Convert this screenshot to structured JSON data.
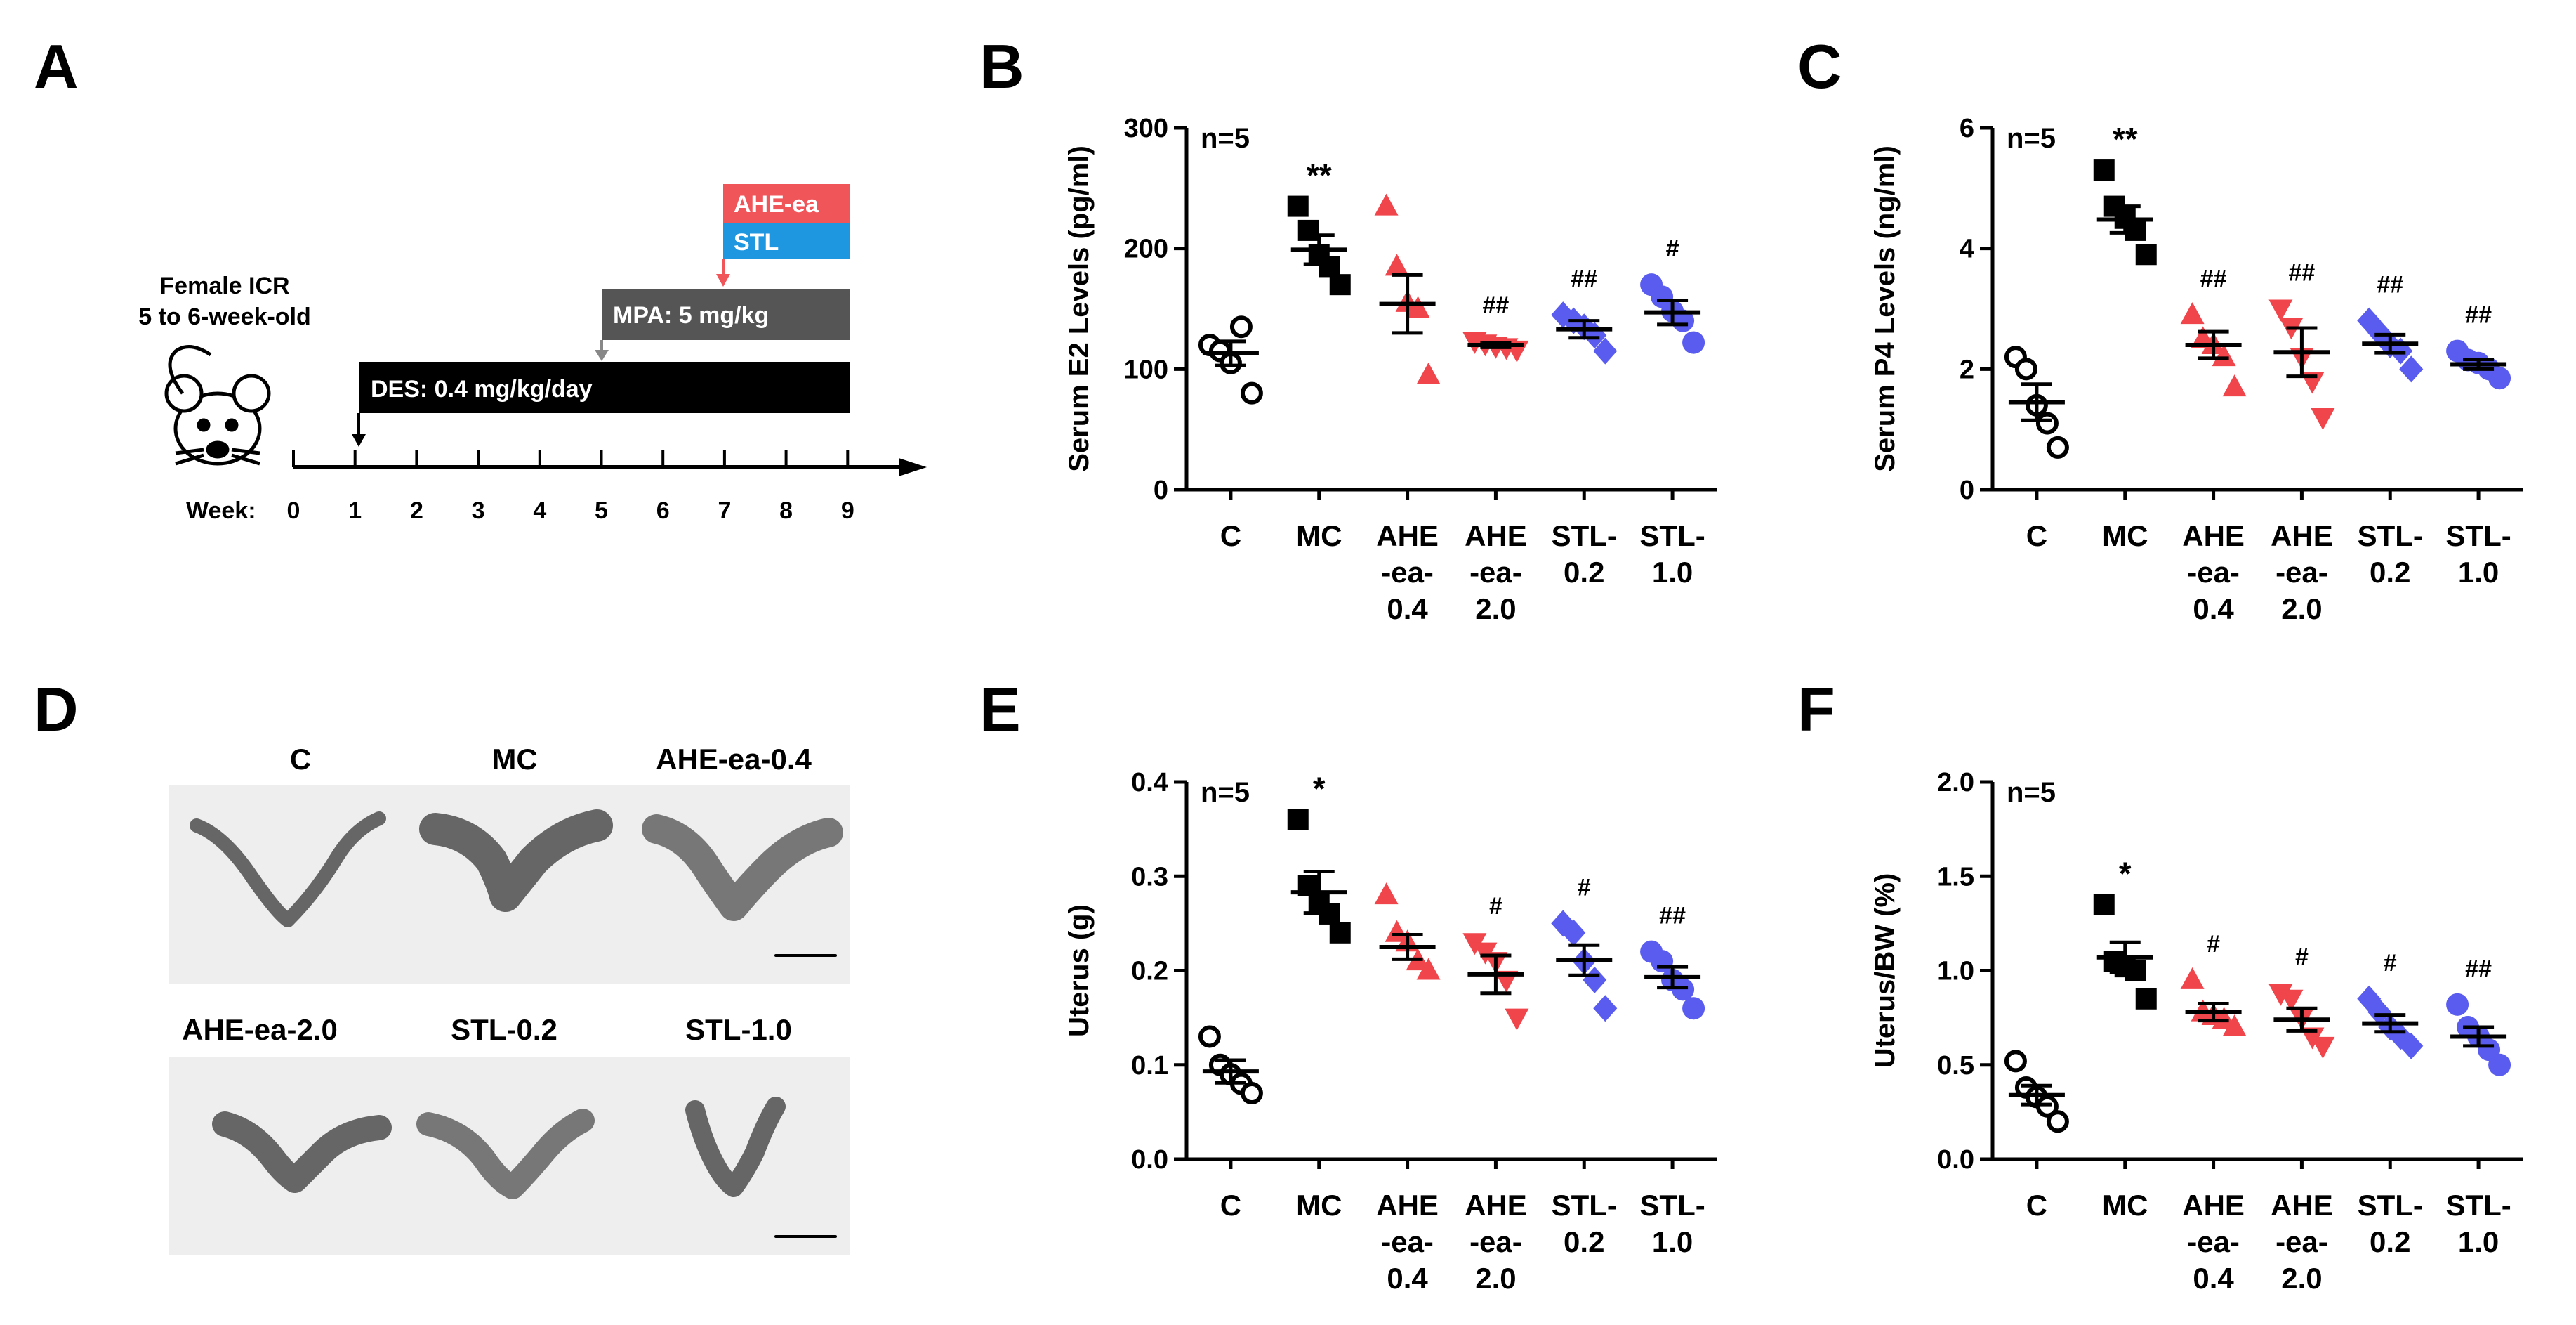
{
  "panel_letters": {
    "A": "A",
    "B": "B",
    "C": "C",
    "D": "D",
    "E": "E",
    "F": "F"
  },
  "colors": {
    "black": "#000000",
    "red": "#f0454b",
    "blue": "#5a5cf0",
    "dark_bar": "#555555",
    "ahe_box": "#f0555a",
    "stl_box": "#1f97e0",
    "photo_bg": "#eeeeee",
    "tissue": "#666666"
  },
  "timeline": {
    "animal_line1": "Female ICR",
    "animal_line2": "5 to 6-week-old",
    "week_label": "Week:",
    "weeks": [
      "0",
      "1",
      "2",
      "3",
      "4",
      "5",
      "6",
      "7",
      "8",
      "9"
    ],
    "des_label": "DES: 0.4 mg/kg/day",
    "mpa_label": "MPA: 5 mg/kg",
    "ahe_label": "AHE-ea",
    "stl_label": "STL",
    "mouse_icon": "mouse-icon"
  },
  "photos": {
    "row1_labels": [
      "C",
      "MC",
      "AHE-ea-0.4"
    ],
    "row2_labels": [
      "AHE-ea-2.0",
      "STL-0.2",
      "STL-1.0"
    ]
  },
  "chart_data": [
    {
      "id": "B",
      "type": "scatter",
      "ylabel": "Serum E2 Levels (pg/ml)",
      "ylim": [
        0,
        300
      ],
      "yticks": [
        "0",
        "100",
        "200",
        "300"
      ],
      "ytick_values": [
        0,
        100,
        200,
        300
      ],
      "n_label": "n=5",
      "groups": [
        {
          "label": [
            "C"
          ],
          "marker": "circle-open",
          "color": "black",
          "points": [
            120,
            115,
            105,
            135,
            80
          ],
          "mean": 113,
          "sem": 10,
          "sig": ""
        },
        {
          "label": [
            "MC"
          ],
          "marker": "square",
          "color": "black",
          "points": [
            235,
            215,
            195,
            185,
            170
          ],
          "mean": 199,
          "sem": 12,
          "sig": "**"
        },
        {
          "label": [
            "AHE",
            "-ea-",
            "0.4"
          ],
          "marker": "triangle-up",
          "color": "red",
          "points": [
            235,
            185,
            155,
            150,
            95
          ],
          "mean": 154,
          "sem": 24,
          "sig": ""
        },
        {
          "label": [
            "AHE",
            "-ea-",
            "2.0"
          ],
          "marker": "triangle-down",
          "color": "red",
          "points": [
            123,
            121,
            119,
            118,
            116
          ],
          "mean": 120,
          "sem": 2,
          "sig": "##"
        },
        {
          "label": [
            "STL-",
            "0.2"
          ],
          "marker": "diamond",
          "color": "blue",
          "points": [
            145,
            140,
            135,
            128,
            115
          ],
          "mean": 133,
          "sem": 7,
          "sig": "##"
        },
        {
          "label": [
            "STL-",
            "1.0"
          ],
          "marker": "circle",
          "color": "blue",
          "points": [
            170,
            160,
            148,
            140,
            122
          ],
          "mean": 147,
          "sem": 10,
          "sig": "#"
        }
      ]
    },
    {
      "id": "C",
      "type": "scatter",
      "ylabel": "Serum P4 Levels (ng/ml)",
      "ylim": [
        0,
        6
      ],
      "yticks": [
        "0",
        "2",
        "4",
        "6"
      ],
      "ytick_values": [
        0,
        2,
        4,
        6
      ],
      "n_label": "n=5",
      "groups": [
        {
          "label": [
            "C"
          ],
          "marker": "circle-open",
          "color": "black",
          "points": [
            2.2,
            2.0,
            1.4,
            1.1,
            0.7
          ],
          "mean": 1.45,
          "sem": 0.3,
          "sig": ""
        },
        {
          "label": [
            "MC"
          ],
          "marker": "square",
          "color": "black",
          "points": [
            5.3,
            4.7,
            4.5,
            4.3,
            3.9
          ],
          "mean": 4.48,
          "sem": 0.22,
          "sig": "**"
        },
        {
          "label": [
            "AHE",
            "-ea-",
            "0.4"
          ],
          "marker": "triangle-up",
          "color": "red",
          "points": [
            2.9,
            2.5,
            2.4,
            2.2,
            1.7
          ],
          "mean": 2.4,
          "sem": 0.22,
          "sig": "##"
        },
        {
          "label": [
            "AHE",
            "-ea-",
            "2.0"
          ],
          "marker": "triangle-down",
          "color": "red",
          "points": [
            3.0,
            2.7,
            2.2,
            1.8,
            1.2
          ],
          "mean": 2.28,
          "sem": 0.4,
          "sig": "##"
        },
        {
          "label": [
            "STL-",
            "0.2"
          ],
          "marker": "diamond",
          "color": "blue",
          "points": [
            2.8,
            2.6,
            2.4,
            2.3,
            2.0
          ],
          "mean": 2.42,
          "sem": 0.15,
          "sig": "##"
        },
        {
          "label": [
            "STL-",
            "1.0"
          ],
          "marker": "circle",
          "color": "blue",
          "points": [
            2.3,
            2.15,
            2.1,
            2.0,
            1.85
          ],
          "mean": 2.08,
          "sem": 0.08,
          "sig": "##"
        }
      ]
    },
    {
      "id": "E",
      "type": "scatter",
      "ylabel": "Uterus (g)",
      "ylim": [
        0,
        0.4
      ],
      "yticks": [
        "0.0",
        "0.1",
        "0.2",
        "0.3",
        "0.4"
      ],
      "ytick_values": [
        0,
        0.1,
        0.2,
        0.3,
        0.4
      ],
      "n_label": "n=5",
      "groups": [
        {
          "label": [
            "C"
          ],
          "marker": "circle-open",
          "color": "black",
          "points": [
            0.13,
            0.1,
            0.09,
            0.08,
            0.07
          ],
          "mean": 0.093,
          "sem": 0.012,
          "sig": ""
        },
        {
          "label": [
            "MC"
          ],
          "marker": "square",
          "color": "black",
          "points": [
            0.36,
            0.29,
            0.27,
            0.26,
            0.24
          ],
          "mean": 0.283,
          "sem": 0.022,
          "sig": "*"
        },
        {
          "label": [
            "AHE",
            "-ea-",
            "0.4"
          ],
          "marker": "triangle-up",
          "color": "red",
          "points": [
            0.28,
            0.24,
            0.23,
            0.21,
            0.2
          ],
          "mean": 0.225,
          "sem": 0.013,
          "sig": ""
        },
        {
          "label": [
            "AHE",
            "-ea-",
            "2.0"
          ],
          "marker": "triangle-down",
          "color": "red",
          "points": [
            0.23,
            0.22,
            0.21,
            0.19,
            0.15
          ],
          "mean": 0.196,
          "sem": 0.02,
          "sig": "#"
        },
        {
          "label": [
            "STL-",
            "0.2"
          ],
          "marker": "diamond",
          "color": "blue",
          "points": [
            0.25,
            0.24,
            0.21,
            0.19,
            0.16
          ],
          "mean": 0.211,
          "sem": 0.016,
          "sig": "#"
        },
        {
          "label": [
            "STL-",
            "1.0"
          ],
          "marker": "circle",
          "color": "blue",
          "points": [
            0.22,
            0.21,
            0.19,
            0.18,
            0.16
          ],
          "mean": 0.193,
          "sem": 0.011,
          "sig": "##"
        }
      ]
    },
    {
      "id": "F",
      "type": "scatter",
      "ylabel": "Uterus/BW (%)",
      "ylim": [
        0,
        2.0
      ],
      "yticks": [
        "0.0",
        "0.5",
        "1.0",
        "1.5",
        "2.0"
      ],
      "ytick_values": [
        0,
        0.5,
        1.0,
        1.5,
        2.0
      ],
      "n_label": "n=5",
      "groups": [
        {
          "label": [
            "C"
          ],
          "marker": "circle-open",
          "color": "black",
          "points": [
            0.52,
            0.38,
            0.33,
            0.28,
            0.2
          ],
          "mean": 0.34,
          "sem": 0.05,
          "sig": ""
        },
        {
          "label": [
            "MC"
          ],
          "marker": "square",
          "color": "black",
          "points": [
            1.35,
            1.05,
            1.02,
            1.0,
            0.85
          ],
          "mean": 1.07,
          "sem": 0.08,
          "sig": "*"
        },
        {
          "label": [
            "AHE",
            "-ea-",
            "0.4"
          ],
          "marker": "triangle-up",
          "color": "red",
          "points": [
            0.95,
            0.78,
            0.76,
            0.74,
            0.7
          ],
          "mean": 0.78,
          "sem": 0.045,
          "sig": "#"
        },
        {
          "label": [
            "AHE",
            "-ea-",
            "2.0"
          ],
          "marker": "triangle-down",
          "color": "red",
          "points": [
            0.88,
            0.85,
            0.75,
            0.65,
            0.6
          ],
          "mean": 0.74,
          "sem": 0.06,
          "sig": "#"
        },
        {
          "label": [
            "STL-",
            "0.2"
          ],
          "marker": "diamond",
          "color": "blue",
          "points": [
            0.85,
            0.78,
            0.7,
            0.65,
            0.6
          ],
          "mean": 0.72,
          "sem": 0.045,
          "sig": "#"
        },
        {
          "label": [
            "STL-",
            "1.0"
          ],
          "marker": "circle",
          "color": "blue",
          "points": [
            0.82,
            0.7,
            0.65,
            0.58,
            0.5
          ],
          "mean": 0.65,
          "sem": 0.05,
          "sig": "##"
        }
      ]
    }
  ]
}
